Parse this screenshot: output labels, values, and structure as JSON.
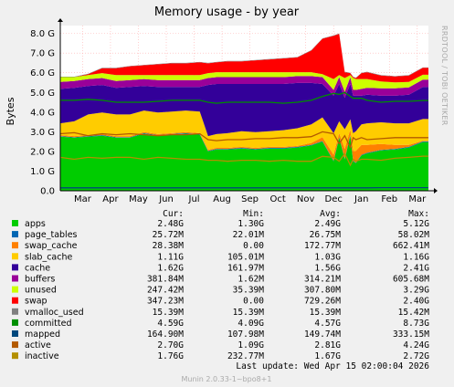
{
  "window": {
    "side_label": "RRDTOOL / TOBI OETIKER",
    "last_update": "Last update: Wed Apr 15 02:00:04 2026",
    "version": "Munin 2.0.33-1~bpo8+1"
  },
  "legend_headers": {
    "cur": "Cur:",
    "min": "Min:",
    "avg": "Avg:",
    "max": "Max:"
  },
  "legend": [
    {
      "name": "apps",
      "color": "#00cc00",
      "cur": "2.48G",
      "min": "1.30G",
      "avg": "2.49G",
      "max": "5.12G"
    },
    {
      "name": "page_tables",
      "color": "#0066b3",
      "cur": "25.72M",
      "min": "22.01M",
      "avg": "26.75M",
      "max": "58.02M"
    },
    {
      "name": "swap_cache",
      "color": "#ff8000",
      "cur": "28.38M",
      "min": "0.00",
      "avg": "172.77M",
      "max": "662.41M"
    },
    {
      "name": "slab_cache",
      "color": "#ffcc00",
      "cur": "1.11G",
      "min": "105.01M",
      "avg": "1.03G",
      "max": "1.16G"
    },
    {
      "name": "cache",
      "color": "#330099",
      "cur": "1.62G",
      "min": "161.97M",
      "avg": "1.56G",
      "max": "2.41G"
    },
    {
      "name": "buffers",
      "color": "#990099",
      "cur": "381.84M",
      "min": "1.62M",
      "avg": "314.21M",
      "max": "605.68M"
    },
    {
      "name": "unused",
      "color": "#ccff00",
      "cur": "247.42M",
      "min": "35.39M",
      "avg": "307.80M",
      "max": "3.29G"
    },
    {
      "name": "swap",
      "color": "#ff0000",
      "cur": "347.23M",
      "min": "0.00",
      "avg": "729.26M",
      "max": "2.40G"
    },
    {
      "name": "vmalloc_used",
      "color": "#808080",
      "cur": "15.39M",
      "min": "15.39M",
      "avg": "15.39M",
      "max": "15.42M"
    },
    {
      "name": "committed",
      "color": "#008f00",
      "cur": "4.59G",
      "min": "4.09G",
      "avg": "4.57G",
      "max": "8.73G"
    },
    {
      "name": "mapped",
      "color": "#00487d",
      "cur": "164.90M",
      "min": "107.98M",
      "avg": "149.74M",
      "max": "333.15M"
    },
    {
      "name": "active",
      "color": "#b35a00",
      "cur": "2.70G",
      "min": "1.09G",
      "avg": "2.81G",
      "max": "4.24G"
    },
    {
      "name": "inactive",
      "color": "#b38f00",
      "cur": "1.76G",
      "min": "232.77M",
      "avg": "1.67G",
      "max": "2.72G"
    }
  ],
  "chart_data": {
    "type": "area",
    "title": "Memory usage - by year",
    "ylabel": "Bytes",
    "xlabel": "",
    "ylim": [
      0,
      8.4
    ],
    "y_ticks": [
      "0.0",
      "1.0 G",
      "2.0 G",
      "3.0 G",
      "4.0 G",
      "5.0 G",
      "6.0 G",
      "7.0 G",
      "8.0 G"
    ],
    "y_tick_values": [
      0,
      1,
      2,
      3,
      4,
      5,
      6,
      7,
      8
    ],
    "x_months": [
      "Mar",
      "Apr",
      "May",
      "Jun",
      "Jul",
      "Aug",
      "Sep",
      "Oct",
      "Nov",
      "Dec",
      "Jan",
      "Feb",
      "Mar"
    ],
    "x_month_positions": [
      0.8,
      1.8,
      2.8,
      3.8,
      4.8,
      5.8,
      6.8,
      7.8,
      8.8,
      9.8,
      10.8,
      11.8,
      12.8
    ],
    "x_range": [
      0,
      13.2
    ],
    "grid": true,
    "legend_position": "bottom",
    "x": [
      0.0,
      0.5,
      1.0,
      1.5,
      2.0,
      2.5,
      3.0,
      3.5,
      4.0,
      4.5,
      5.0,
      5.3,
      5.6,
      6.0,
      6.5,
      7.0,
      7.5,
      8.0,
      8.5,
      9.0,
      9.4,
      9.8,
      10.0,
      10.2,
      10.4,
      10.5,
      10.6,
      10.8,
      11.0,
      11.5,
      12.0,
      12.5,
      13.0,
      13.2
    ],
    "stack_order": [
      "apps",
      "page_tables",
      "swap_cache",
      "slab_cache",
      "cache",
      "buffers",
      "unused",
      "swap",
      "vmalloc_used"
    ],
    "line_order": [
      "committed",
      "mapped",
      "active",
      "inactive"
    ],
    "series": [
      {
        "name": "apps",
        "values": [
          2.75,
          2.7,
          2.75,
          2.8,
          2.7,
          2.7,
          2.9,
          2.8,
          2.85,
          2.9,
          2.85,
          2.0,
          2.1,
          2.1,
          2.15,
          2.1,
          2.15,
          2.15,
          2.2,
          2.3,
          2.5,
          1.5,
          2.7,
          1.6,
          2.8,
          1.5,
          1.4,
          1.8,
          1.9,
          2.05,
          2.1,
          2.2,
          2.48,
          2.48
        ]
      },
      {
        "name": "page_tables",
        "values": [
          0.03,
          0.03,
          0.03,
          0.03,
          0.03,
          0.03,
          0.03,
          0.03,
          0.03,
          0.03,
          0.03,
          0.03,
          0.03,
          0.03,
          0.03,
          0.03,
          0.03,
          0.03,
          0.03,
          0.03,
          0.03,
          0.03,
          0.03,
          0.03,
          0.03,
          0.03,
          0.03,
          0.03,
          0.03,
          0.03,
          0.03,
          0.03,
          0.03,
          0.03
        ]
      },
      {
        "name": "swap_cache",
        "values": [
          0.05,
          0.05,
          0.05,
          0.05,
          0.05,
          0.05,
          0.05,
          0.05,
          0.05,
          0.05,
          0.05,
          0.05,
          0.05,
          0.05,
          0.05,
          0.05,
          0.05,
          0.05,
          0.05,
          0.1,
          0.2,
          0.3,
          0.2,
          0.5,
          0.3,
          0.5,
          0.6,
          0.5,
          0.4,
          0.3,
          0.2,
          0.1,
          0.03,
          0.03
        ]
      },
      {
        "name": "slab_cache",
        "values": [
          0.6,
          0.75,
          1.05,
          1.1,
          1.1,
          1.1,
          1.1,
          1.1,
          1.1,
          1.1,
          1.1,
          0.7,
          0.7,
          0.75,
          0.8,
          0.8,
          0.8,
          0.85,
          0.9,
          0.95,
          1.0,
          1.1,
          0.6,
          1.0,
          0.5,
          0.9,
          1.0,
          1.05,
          1.1,
          1.1,
          1.1,
          1.1,
          1.11,
          1.11
        ]
      },
      {
        "name": "cache",
        "values": [
          1.75,
          1.7,
          1.45,
          1.4,
          1.35,
          1.4,
          1.25,
          1.3,
          1.25,
          1.2,
          1.25,
          2.6,
          2.55,
          2.5,
          2.4,
          2.45,
          2.4,
          2.35,
          2.3,
          2.1,
          1.7,
          1.9,
          1.9,
          1.6,
          1.8,
          1.9,
          1.8,
          1.45,
          1.45,
          1.35,
          1.4,
          1.45,
          1.62,
          1.62
        ]
      },
      {
        "name": "buffers",
        "values": [
          0.35,
          0.35,
          0.35,
          0.35,
          0.35,
          0.35,
          0.35,
          0.35,
          0.35,
          0.35,
          0.35,
          0.35,
          0.35,
          0.35,
          0.35,
          0.35,
          0.35,
          0.35,
          0.35,
          0.35,
          0.35,
          0.3,
          0.35,
          0.3,
          0.35,
          0.3,
          0.3,
          0.35,
          0.35,
          0.38,
          0.38,
          0.38,
          0.38,
          0.38
        ]
      },
      {
        "name": "unused",
        "values": [
          0.25,
          0.2,
          0.2,
          0.25,
          0.3,
          0.25,
          0.2,
          0.25,
          0.25,
          0.25,
          0.25,
          0.25,
          0.25,
          0.25,
          0.25,
          0.25,
          0.25,
          0.25,
          0.2,
          0.2,
          0.15,
          0.55,
          0.1,
          0.7,
          0.1,
          0.6,
          0.55,
          0.5,
          0.45,
          0.35,
          0.3,
          0.27,
          0.25,
          0.25
        ]
      },
      {
        "name": "swap",
        "values": [
          0.0,
          0.0,
          0.05,
          0.25,
          0.35,
          0.45,
          0.5,
          0.55,
          0.6,
          0.6,
          0.65,
          0.5,
          0.5,
          0.55,
          0.55,
          0.6,
          0.65,
          0.7,
          0.75,
          1.1,
          1.8,
          2.2,
          2.1,
          0.3,
          0.1,
          0.05,
          0.05,
          0.3,
          0.35,
          0.3,
          0.3,
          0.33,
          0.35,
          0.35
        ]
      },
      {
        "name": "vmalloc_used",
        "values": [
          0.02,
          0.02,
          0.02,
          0.02,
          0.02,
          0.02,
          0.02,
          0.02,
          0.02,
          0.02,
          0.02,
          0.02,
          0.02,
          0.02,
          0.02,
          0.02,
          0.02,
          0.02,
          0.02,
          0.02,
          0.02,
          0.02,
          0.02,
          0.02,
          0.02,
          0.02,
          0.02,
          0.02,
          0.02,
          0.02,
          0.02,
          0.02,
          0.02,
          0.02
        ]
      },
      {
        "name": "committed",
        "values": [
          4.6,
          4.6,
          4.65,
          4.6,
          4.5,
          4.5,
          4.5,
          4.55,
          4.6,
          4.6,
          4.6,
          4.5,
          4.45,
          4.5,
          4.5,
          4.5,
          4.5,
          4.45,
          4.5,
          4.6,
          4.8,
          4.95,
          4.9,
          5.0,
          4.8,
          4.7,
          4.7,
          4.7,
          4.6,
          4.5,
          4.55,
          4.55,
          4.59,
          4.59
        ]
      },
      {
        "name": "mapped",
        "values": [
          0.15,
          0.15,
          0.15,
          0.15,
          0.15,
          0.15,
          0.15,
          0.15,
          0.15,
          0.15,
          0.15,
          0.15,
          0.15,
          0.15,
          0.15,
          0.15,
          0.15,
          0.15,
          0.15,
          0.15,
          0.15,
          0.15,
          0.15,
          0.15,
          0.15,
          0.15,
          0.15,
          0.15,
          0.15,
          0.16,
          0.16,
          0.16,
          0.16,
          0.16
        ]
      },
      {
        "name": "active",
        "values": [
          2.9,
          2.95,
          2.8,
          2.9,
          2.85,
          2.9,
          2.85,
          2.8,
          2.85,
          2.85,
          2.9,
          2.6,
          2.55,
          2.6,
          2.6,
          2.65,
          2.65,
          2.7,
          2.7,
          2.75,
          3.0,
          2.9,
          2.4,
          2.8,
          2.2,
          2.7,
          2.6,
          2.7,
          2.6,
          2.65,
          2.7,
          2.7,
          2.7,
          2.7
        ]
      },
      {
        "name": "inactive",
        "values": [
          1.7,
          1.6,
          1.7,
          1.65,
          1.7,
          1.7,
          1.6,
          1.7,
          1.65,
          1.6,
          1.6,
          1.55,
          1.55,
          1.5,
          1.55,
          1.55,
          1.5,
          1.55,
          1.5,
          1.5,
          1.75,
          1.7,
          1.5,
          1.9,
          1.3,
          1.6,
          1.5,
          1.6,
          1.6,
          1.55,
          1.65,
          1.7,
          1.76,
          1.76
        ]
      }
    ]
  }
}
